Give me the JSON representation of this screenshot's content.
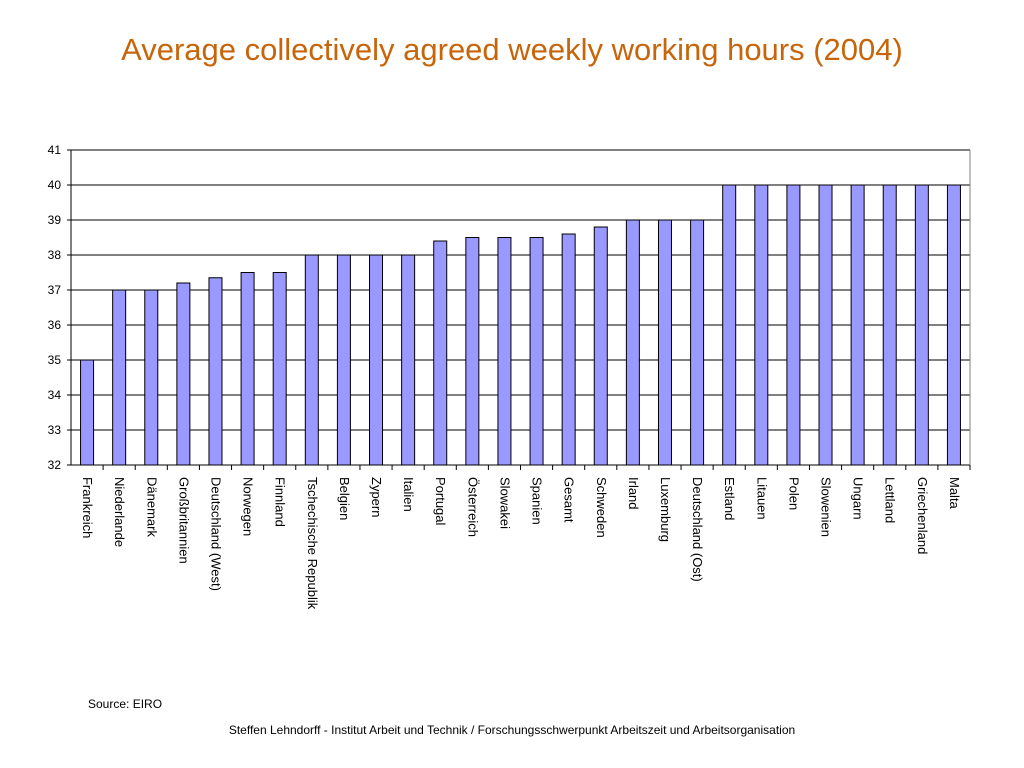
{
  "slide": {
    "title": "Average collectively agreed weekly working hours (2004)",
    "source": "Source: EIRO",
    "footer": "Steffen Lehndorff - Institut Arbeit und Technik / Forschungsschwerpunkt Arbeitszeit und Arbeitsorganisation"
  },
  "colors": {
    "title": "#C8650A",
    "bar_fill": "#9999FF",
    "bar_stroke": "#000000",
    "gridline": "#000000"
  },
  "chart_data": {
    "type": "bar",
    "title": "",
    "xlabel": "",
    "ylabel": "",
    "ylim": [
      32,
      41
    ],
    "yticks": [
      32,
      33,
      34,
      35,
      36,
      37,
      38,
      39,
      40,
      41
    ],
    "grid": true,
    "legend": "none",
    "categories": [
      "Frankreich",
      "Niederlande",
      "Dänemark",
      "Großbritannien",
      "Deutschland (West)",
      "Norwegen",
      "Finnland",
      "Tschechische Republik",
      "Belgien",
      "Zypern",
      "Italien",
      "Portugal",
      "Österreich",
      "Slowakei",
      "Spanien",
      "Gesamt",
      "Schweden",
      "Irland",
      "Luxemburg",
      "Deutschland (Ost)",
      "Estland",
      "Litauen",
      "Polen",
      "Slowenien",
      "Ungarn",
      "Lettland",
      "Griechenland",
      "Malta"
    ],
    "values": [
      35,
      37,
      37,
      37.2,
      37.35,
      37.5,
      37.5,
      38,
      38,
      38,
      38,
      38.4,
      38.5,
      38.5,
      38.5,
      38.6,
      38.8,
      39,
      39,
      39,
      40,
      40,
      40,
      40,
      40,
      40,
      40,
      40
    ]
  }
}
